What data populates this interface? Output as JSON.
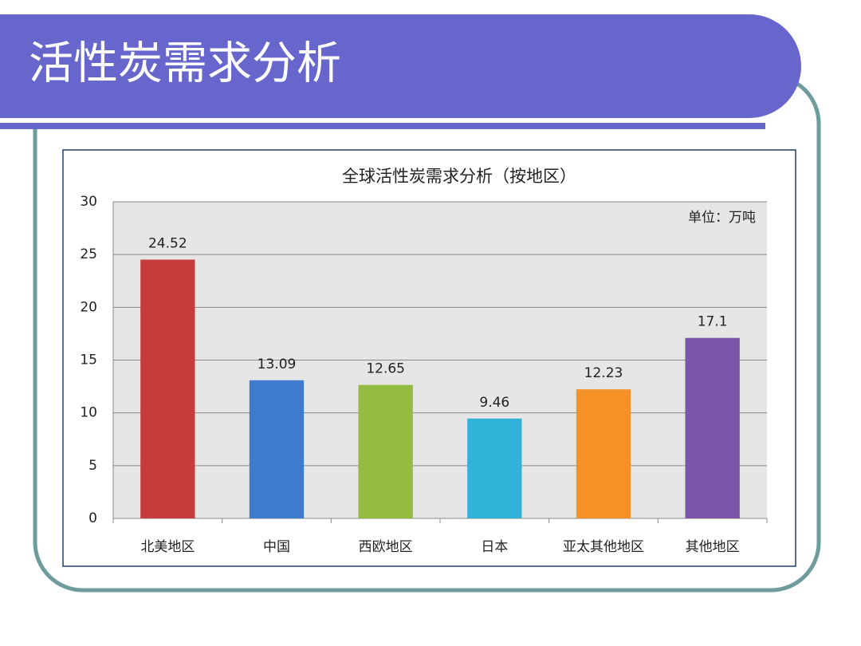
{
  "slide_title": "活性炭需求分析",
  "chart_data": {
    "type": "bar",
    "title": "全球活性炭需求分析（按地区）",
    "annotation": "单位：万吨",
    "categories": [
      "北美地区",
      "中国",
      "西欧地区",
      "日本",
      "亚太其他地区",
      "其他地区"
    ],
    "values": [
      24.52,
      13.09,
      12.65,
      9.46,
      12.23,
      17.1
    ],
    "colors": [
      "#c43c3c",
      "#3d7ccc",
      "#94bb42",
      "#31b2d8",
      "#f59126",
      "#7a55a8"
    ],
    "ylim": [
      0,
      30
    ],
    "yticks": [
      0,
      5,
      10,
      15,
      20,
      25,
      30
    ],
    "grid": true
  }
}
